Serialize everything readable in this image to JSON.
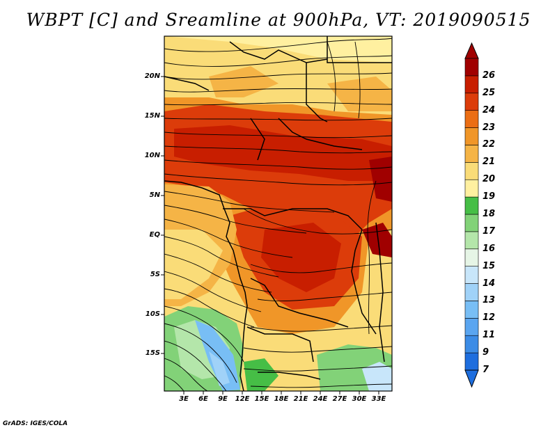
{
  "title": "WBPT [C] and Sreamline at 900hPa, VT: 2019090515",
  "credit": "GrADS: IGES/COLA",
  "lat_labels": [
    "20N",
    "15N",
    "10N",
    "5N",
    "EQ",
    "5S",
    "10S",
    "15S"
  ],
  "lon_labels": [
    "3E",
    "6E",
    "9E",
    "12E",
    "15E",
    "18E",
    "21E",
    "24E",
    "27E",
    "30E",
    "33E"
  ],
  "colorbar": {
    "labels": [
      "7",
      "9",
      "11",
      "12",
      "13",
      "14",
      "15",
      "16",
      "17",
      "18",
      "19",
      "20",
      "21",
      "22",
      "23",
      "24",
      "25",
      "26"
    ],
    "colors": [
      "#1e6ede",
      "#3c8ce6",
      "#5aa5f0",
      "#78bef5",
      "#a0d2f8",
      "#c8e6fa",
      "#e6f5e6",
      "#b4e6aa",
      "#82d278",
      "#46be46",
      "#fff0a0",
      "#fadc78",
      "#f5b446",
      "#f09628",
      "#eb6e14",
      "#dc3c0a",
      "#c81e00",
      "#a00000"
    ]
  },
  "legend": {
    "variable": "WBPT [C]",
    "overlay": "Sreamline",
    "level": "900hPa",
    "valid_time": "2019090515"
  }
}
